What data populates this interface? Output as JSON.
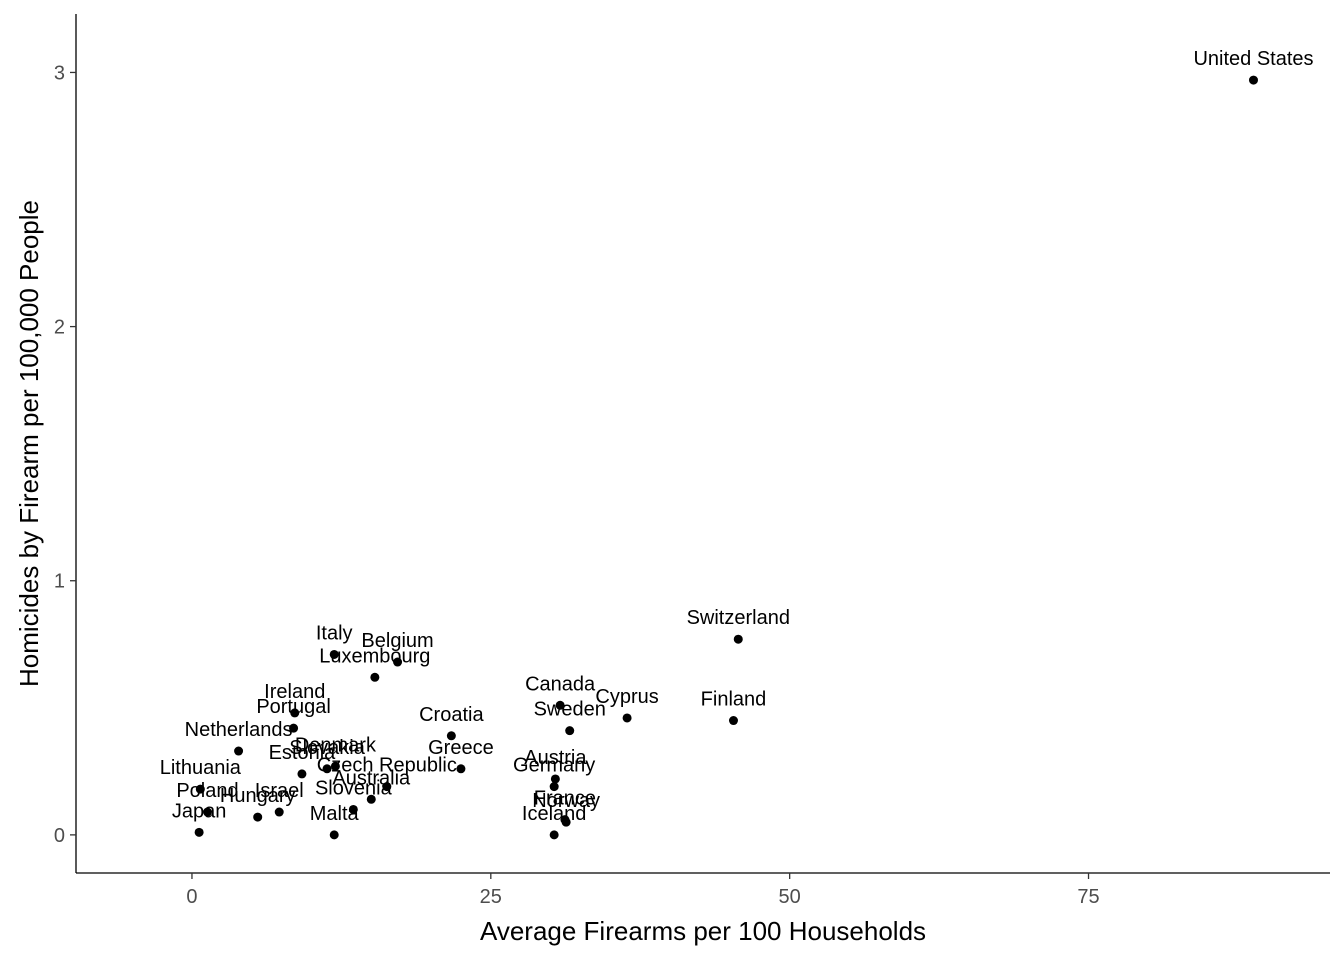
{
  "chart_data": {
    "type": "scatter",
    "title": "",
    "xlabel": "Average Firearms per 100 Households",
    "ylabel": "Homicides by Firearm per 100,000 People",
    "xlim": [
      -9.7,
      95.2
    ],
    "ylim": [
      -0.15,
      3.23
    ],
    "xticks": [
      0,
      25,
      50,
      75
    ],
    "yticks": [
      0,
      1,
      2,
      3
    ],
    "grid": false,
    "legend": "none",
    "point_color": "#000000",
    "points": [
      {
        "label": "United States",
        "x": 88.8,
        "y": 2.97
      },
      {
        "label": "Switzerland",
        "x": 45.7,
        "y": 0.77
      },
      {
        "label": "Finland",
        "x": 45.3,
        "y": 0.45
      },
      {
        "label": "Cyprus",
        "x": 36.4,
        "y": 0.46
      },
      {
        "label": "Canada",
        "x": 30.8,
        "y": 0.51
      },
      {
        "label": "Sweden",
        "x": 31.6,
        "y": 0.41
      },
      {
        "label": "Austria",
        "x": 30.4,
        "y": 0.22
      },
      {
        "label": "Germany",
        "x": 30.3,
        "y": 0.19
      },
      {
        "label": "France",
        "x": 31.2,
        "y": 0.06
      },
      {
        "label": "Norway",
        "x": 31.3,
        "y": 0.05
      },
      {
        "label": "Iceland",
        "x": 30.3,
        "y": 0.0
      },
      {
        "label": "Croatia",
        "x": 21.7,
        "y": 0.39
      },
      {
        "label": "Greece",
        "x": 22.5,
        "y": 0.26
      },
      {
        "label": "Italy",
        "x": 11.9,
        "y": 0.71
      },
      {
        "label": "Belgium",
        "x": 17.2,
        "y": 0.68
      },
      {
        "label": "Luxembourg",
        "x": 15.3,
        "y": 0.62
      },
      {
        "label": "Ireland",
        "x": 8.6,
        "y": 0.48
      },
      {
        "label": "Portugal",
        "x": 8.5,
        "y": 0.42
      },
      {
        "label": "Netherlands",
        "x": 3.9,
        "y": 0.33
      },
      {
        "label": "Denmark",
        "x": 12.0,
        "y": 0.27
      },
      {
        "label": "Estonia",
        "x": 9.2,
        "y": 0.24
      },
      {
        "label": "Czech Republic",
        "x": 16.3,
        "y": 0.19
      },
      {
        "label": "Australia",
        "x": 15.0,
        "y": 0.14
      },
      {
        "label": "Slovakia",
        "x": 11.3,
        "y": 0.26
      },
      {
        "label": "Slovenia",
        "x": 13.5,
        "y": 0.1
      },
      {
        "label": "Lithuania",
        "x": 0.7,
        "y": 0.18
      },
      {
        "label": "Poland",
        "x": 1.3,
        "y": 0.09
      },
      {
        "label": "Israel",
        "x": 7.3,
        "y": 0.09
      },
      {
        "label": "Hungary",
        "x": 5.5,
        "y": 0.07
      },
      {
        "label": "Japan",
        "x": 0.6,
        "y": 0.01
      },
      {
        "label": "Malta",
        "x": 11.9,
        "y": 0.0
      }
    ]
  }
}
